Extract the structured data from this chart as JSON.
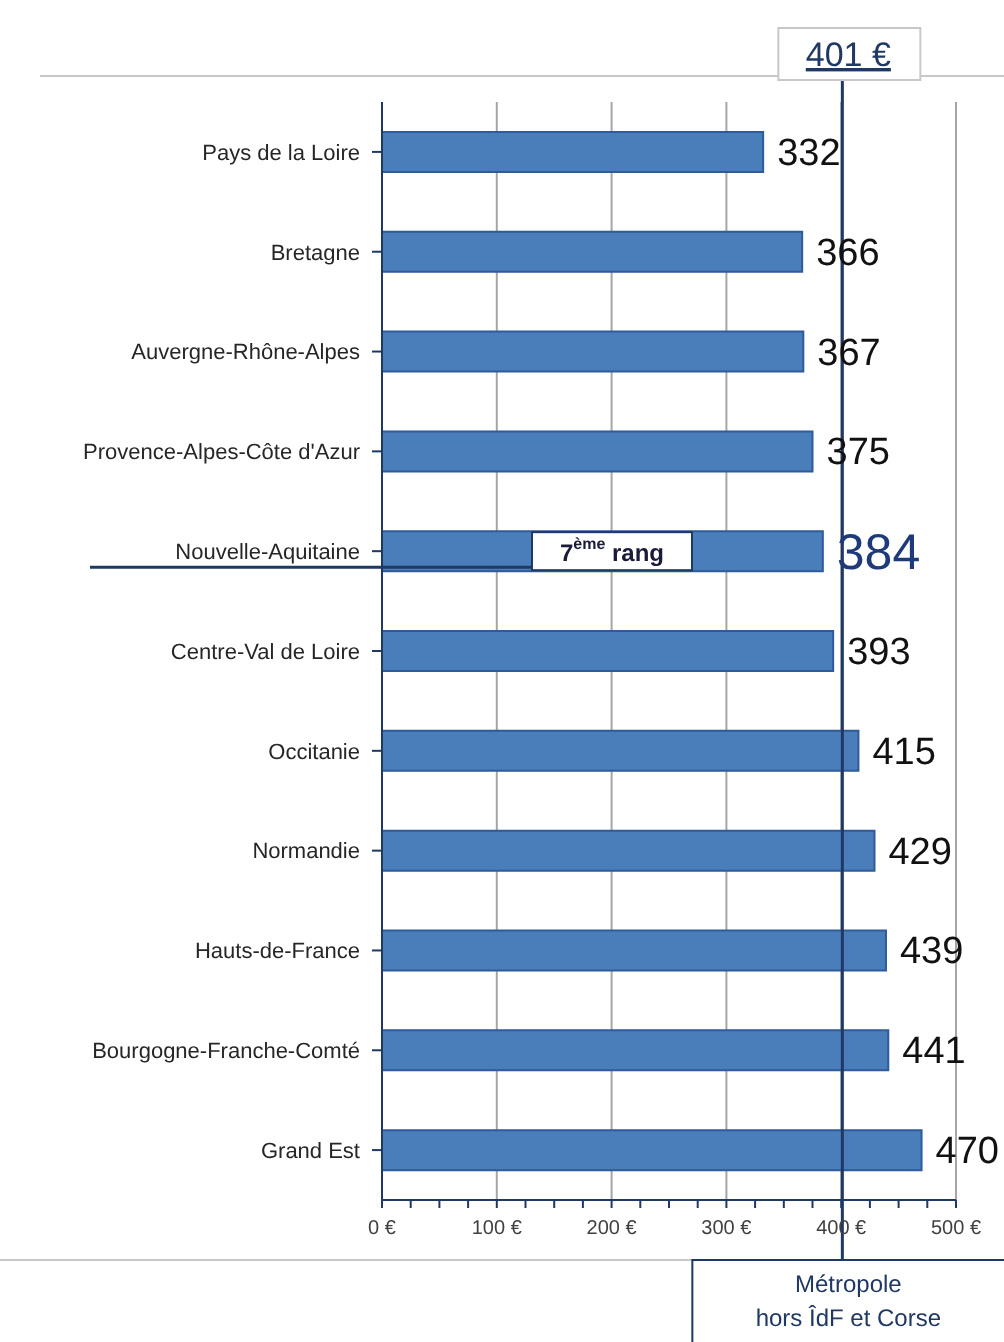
{
  "chart_data": {
    "type": "bar",
    "orientation": "horizontal",
    "categories": [
      "Pays de la Loire",
      "Bretagne",
      "Auvergne-Rhône-Alpes",
      "Provence-Alpes-Côte d'Azur",
      "Nouvelle-Aquitaine",
      "Centre-Val de Loire",
      "Occitanie",
      "Normandie",
      "Hauts-de-France",
      "Bourgogne-Franche-Comté",
      "Grand Est"
    ],
    "values": [
      332,
      366,
      367,
      375,
      384,
      393,
      415,
      429,
      439,
      441,
      470
    ],
    "color": "#4a7ebb",
    "xlim": [
      0,
      500
    ],
    "xticks": [
      {
        "value": 0,
        "label": "0 €"
      },
      {
        "value": 25,
        "label": null
      },
      {
        "value": 50,
        "label": null
      },
      {
        "value": 75,
        "label": null
      },
      {
        "value": 100,
        "label": "100 €"
      },
      {
        "value": 125,
        "label": null
      },
      {
        "value": 150,
        "label": null
      },
      {
        "value": 175,
        "label": null
      },
      {
        "value": 200,
        "label": "200 €"
      },
      {
        "value": 225,
        "label": null
      },
      {
        "value": 250,
        "label": null
      },
      {
        "value": 275,
        "label": null
      },
      {
        "value": 300,
        "label": "300 €"
      },
      {
        "value": 325,
        "label": null
      },
      {
        "value": 350,
        "label": null
      },
      {
        "value": 375,
        "label": null
      },
      {
        "value": 400,
        "label": "400 €"
      },
      {
        "value": 425,
        "label": null
      },
      {
        "value": 450,
        "label": null
      },
      {
        "value": 475,
        "label": null
      },
      {
        "value": 500,
        "label": "500 €"
      }
    ],
    "grid": "x",
    "data_labels": true,
    "ref_lines": [
      {
        "axis": "x",
        "value": 401,
        "label": "401 €",
        "color": "#1f3864"
      }
    ],
    "annotations": [
      "7$^{ème}$ rang",
      "Métropole\nhors ÎdF et Corse"
    ]
  }
}
